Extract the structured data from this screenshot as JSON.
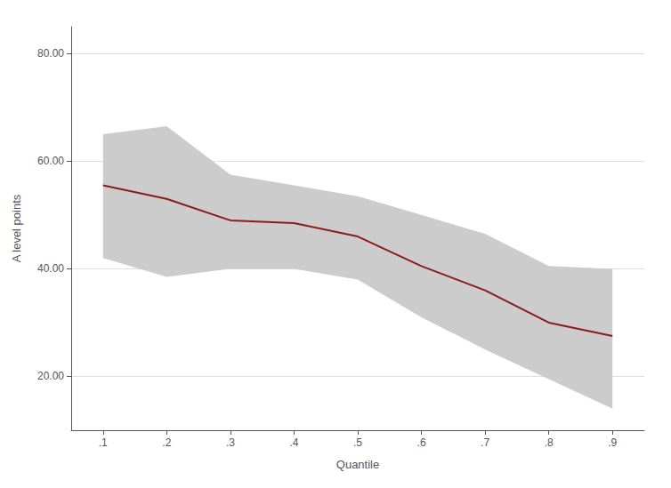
{
  "chart_data": {
    "type": "line",
    "xlabel": "Quantile",
    "ylabel": "A level points",
    "x": [
      0.1,
      0.2,
      0.3,
      0.4,
      0.5,
      0.6,
      0.7,
      0.8,
      0.9
    ],
    "values": [
      55.5,
      53.0,
      49.0,
      48.5,
      46.0,
      40.5,
      36.0,
      30.0,
      27.5
    ],
    "ci_upper": [
      65.0,
      66.5,
      57.5,
      55.5,
      53.5,
      50.0,
      46.5,
      40.5,
      40.0
    ],
    "ci_lower": [
      42.0,
      38.5,
      40.0,
      40.0,
      38.0,
      31.0,
      25.0,
      19.5,
      14.0
    ],
    "color": "#8B1A1A",
    "xlim": [
      0.05,
      0.95
    ],
    "ylim": [
      10,
      85
    ],
    "xticks": [
      {
        "value": 0.1,
        "label": ".1"
      },
      {
        "value": 0.2,
        "label": ".2"
      },
      {
        "value": 0.3,
        "label": ".3"
      },
      {
        "value": 0.4,
        "label": ".4"
      },
      {
        "value": 0.5,
        "label": ".5"
      },
      {
        "value": 0.6,
        "label": ".6"
      },
      {
        "value": 0.7,
        "label": ".7"
      },
      {
        "value": 0.8,
        "label": ".8"
      },
      {
        "value": 0.9,
        "label": ".9"
      }
    ],
    "yticks": [
      {
        "value": 20.0,
        "label": "20.00"
      },
      {
        "value": 40.0,
        "label": "40.00"
      },
      {
        "value": 60.0,
        "label": "60.00"
      },
      {
        "value": 80.0,
        "label": "80.00"
      }
    ],
    "grid": "y"
  }
}
